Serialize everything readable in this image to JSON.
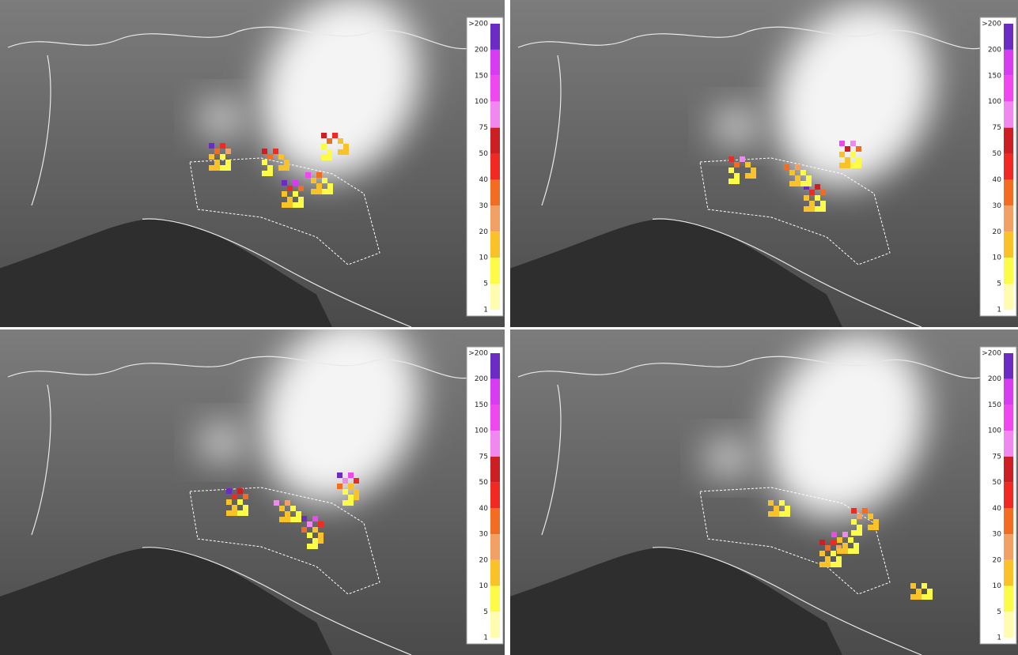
{
  "colorbar": {
    "labels": [
      ">200",
      "200",
      "150",
      "100",
      "75",
      "50",
      "40",
      "30",
      "20",
      "10",
      "5",
      "1"
    ],
    "colors": [
      "#6b2cc4",
      "#d83cf0",
      "#f048f0",
      "#f088f0",
      "#cc1f24",
      "#f02a22",
      "#f26d22",
      "#f2a064",
      "#f8c228",
      "#fcfc48",
      "#fffcb0"
    ]
  }
}
